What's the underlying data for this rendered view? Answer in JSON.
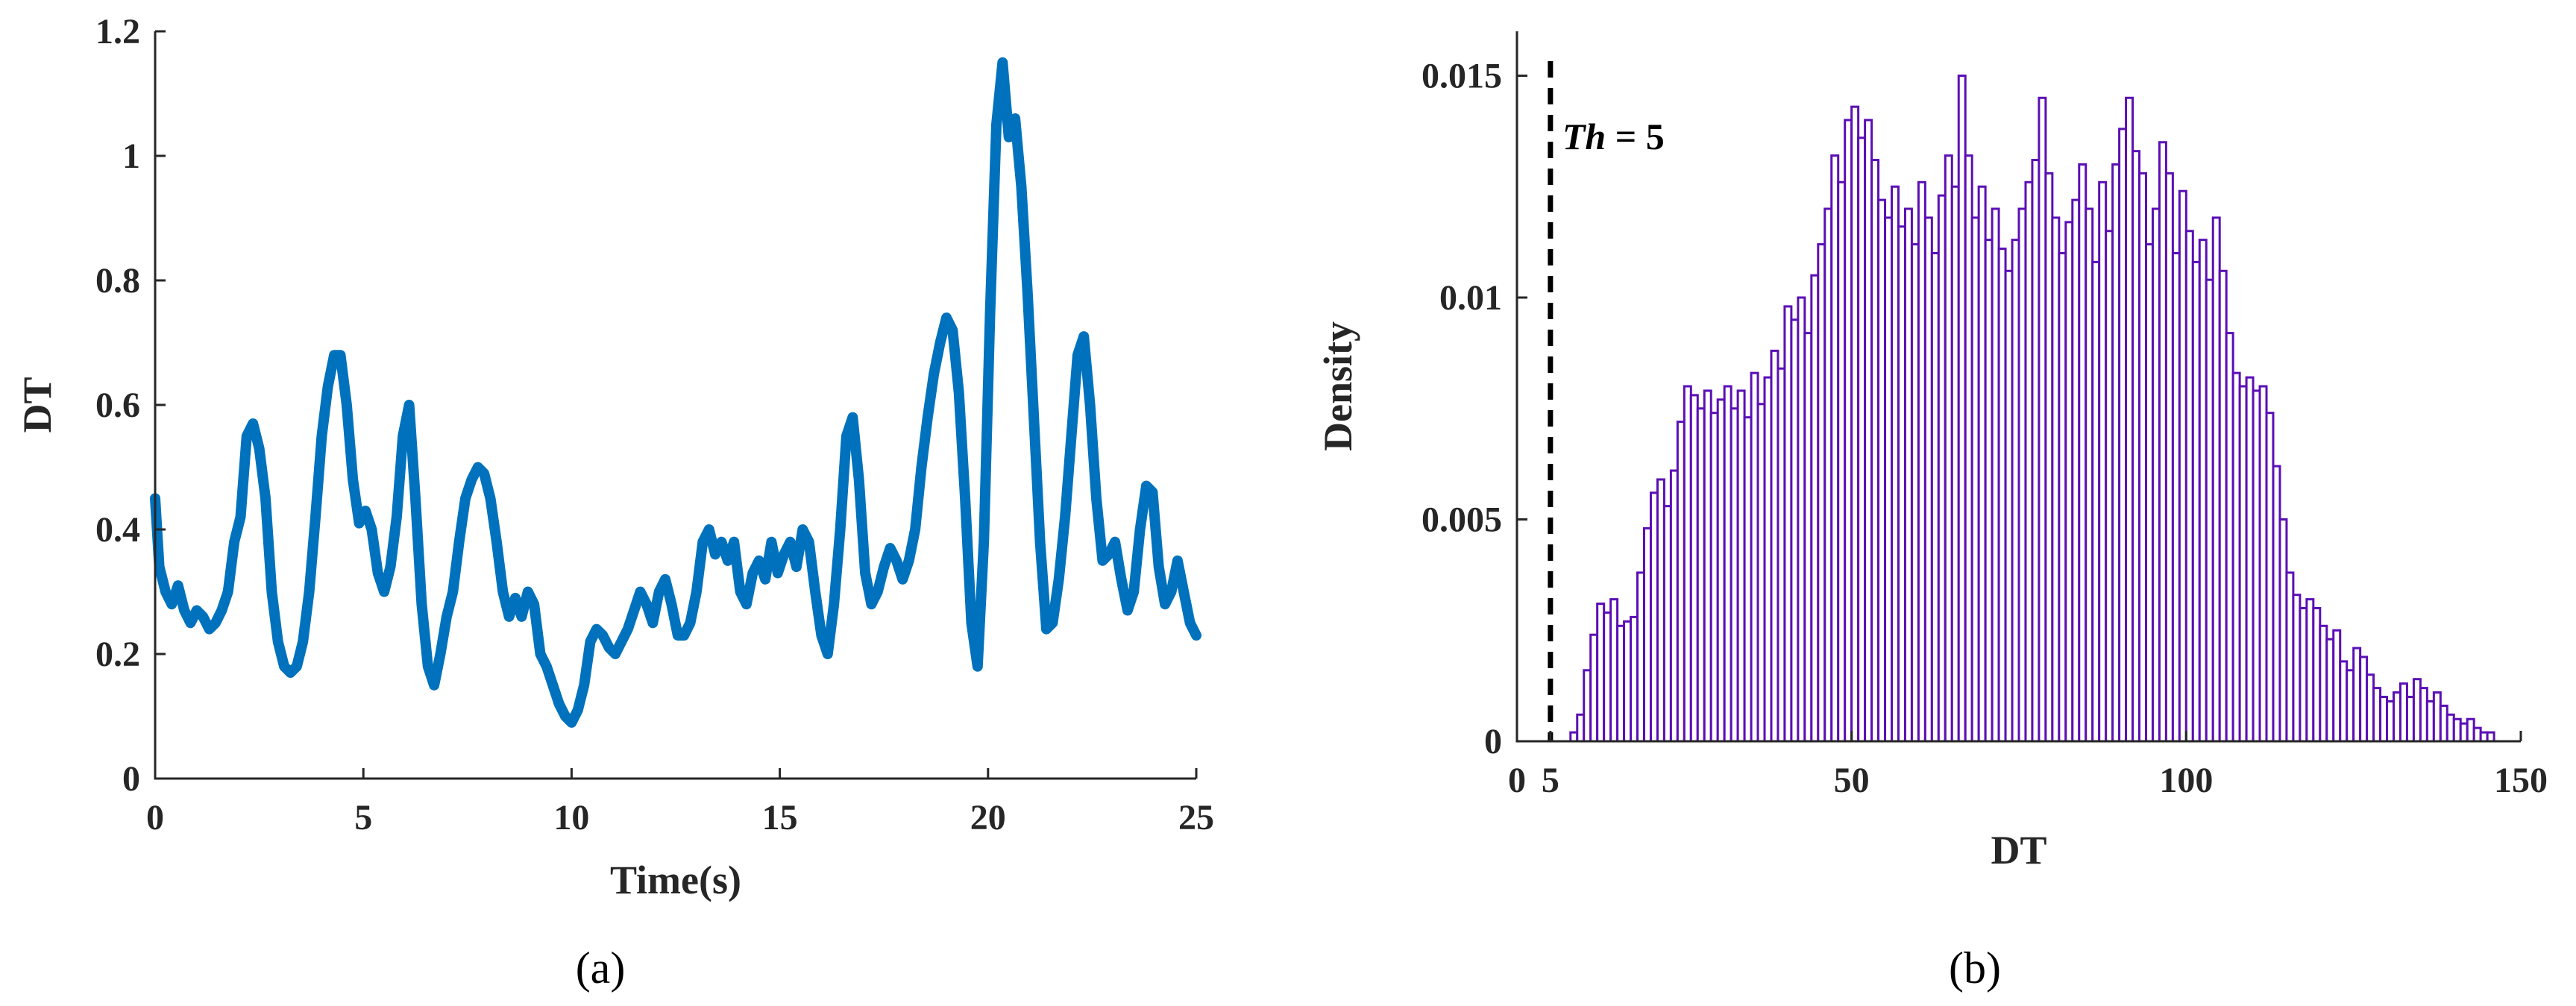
{
  "chart_data": [
    {
      "type": "line",
      "panel_label": "(a)",
      "xlabel": "Time(s)",
      "ylabel": "DT",
      "xlim": [
        0,
        25
      ],
      "ylim": [
        0,
        1.2
      ],
      "xticks": [
        0,
        5,
        10,
        15,
        20,
        25
      ],
      "xtick_labels": [
        "0",
        "5",
        "10",
        "15",
        "20",
        "25"
      ],
      "yticks": [
        0,
        0.2,
        0.4,
        0.6,
        0.8,
        1.0,
        1.2
      ],
      "ytick_labels": [
        "0",
        "0.2",
        "0.4",
        "0.6",
        "0.8",
        "1",
        "1.2"
      ],
      "grid": false,
      "color": "#0072BD",
      "series": [
        {
          "x": [
            0,
            0.1,
            0.25,
            0.4,
            0.55,
            0.7,
            0.85,
            1.0,
            1.15,
            1.3,
            1.45,
            1.6,
            1.75,
            1.9,
            2.05,
            2.2,
            2.35,
            2.5,
            2.65,
            2.8,
            2.95,
            3.1,
            3.25,
            3.4,
            3.55,
            3.7,
            3.85,
            4.0,
            4.15,
            4.3,
            4.45,
            4.6,
            4.75,
            4.9,
            5.05,
            5.2,
            5.35,
            5.5,
            5.65,
            5.8,
            5.95,
            6.1,
            6.25,
            6.4,
            6.55,
            6.7,
            6.85,
            7.0,
            7.15,
            7.3,
            7.45,
            7.6,
            7.75,
            7.9,
            8.05,
            8.2,
            8.35,
            8.5,
            8.65,
            8.8,
            8.95,
            9.1,
            9.25,
            9.4,
            9.55,
            9.7,
            9.85,
            10.0,
            10.15,
            10.3,
            10.45,
            10.6,
            10.75,
            10.9,
            11.05,
            11.2,
            11.35,
            11.5,
            11.65,
            11.8,
            11.95,
            12.1,
            12.25,
            12.4,
            12.55,
            12.7,
            12.85,
            13.0,
            13.15,
            13.3,
            13.45,
            13.6,
            13.75,
            13.9,
            14.05,
            14.2,
            14.35,
            14.5,
            14.65,
            14.8,
            14.95,
            15.1,
            15.25,
            15.4,
            15.55,
            15.7,
            15.85,
            16.0,
            16.15,
            16.3,
            16.45,
            16.6,
            16.75,
            16.9,
            17.05,
            17.2,
            17.35,
            17.5,
            17.65,
            17.8,
            17.95,
            18.1,
            18.25,
            18.4,
            18.55,
            18.7,
            18.85,
            19.0,
            19.15,
            19.3,
            19.45,
            19.6,
            19.75,
            19.9,
            20.05,
            20.2,
            20.35,
            20.5,
            20.65,
            20.8,
            20.95,
            21.1,
            21.25,
            21.4,
            21.55,
            21.7,
            21.85,
            22.0,
            22.15,
            22.3,
            22.45,
            22.6,
            22.75,
            22.9,
            23.05,
            23.2,
            23.35,
            23.5,
            23.65,
            23.8,
            23.95,
            24.1,
            24.25,
            24.4,
            24.55,
            24.7,
            24.85,
            25.0
          ],
          "y": [
            0.45,
            0.34,
            0.3,
            0.28,
            0.31,
            0.27,
            0.25,
            0.27,
            0.26,
            0.24,
            0.25,
            0.27,
            0.3,
            0.38,
            0.42,
            0.55,
            0.57,
            0.53,
            0.45,
            0.3,
            0.22,
            0.18,
            0.17,
            0.18,
            0.22,
            0.3,
            0.42,
            0.55,
            0.63,
            0.68,
            0.68,
            0.6,
            0.48,
            0.41,
            0.43,
            0.4,
            0.33,
            0.3,
            0.34,
            0.42,
            0.55,
            0.6,
            0.45,
            0.28,
            0.18,
            0.15,
            0.2,
            0.26,
            0.3,
            0.38,
            0.45,
            0.48,
            0.5,
            0.49,
            0.45,
            0.38,
            0.3,
            0.26,
            0.29,
            0.26,
            0.3,
            0.28,
            0.2,
            0.18,
            0.15,
            0.12,
            0.1,
            0.09,
            0.11,
            0.15,
            0.22,
            0.24,
            0.23,
            0.21,
            0.2,
            0.22,
            0.24,
            0.27,
            0.3,
            0.28,
            0.25,
            0.3,
            0.32,
            0.28,
            0.23,
            0.23,
            0.25,
            0.3,
            0.38,
            0.4,
            0.36,
            0.38,
            0.35,
            0.38,
            0.3,
            0.28,
            0.33,
            0.35,
            0.32,
            0.38,
            0.33,
            0.36,
            0.38,
            0.34,
            0.4,
            0.38,
            0.3,
            0.23,
            0.2,
            0.28,
            0.4,
            0.55,
            0.58,
            0.48,
            0.33,
            0.28,
            0.3,
            0.34,
            0.37,
            0.35,
            0.32,
            0.35,
            0.4,
            0.5,
            0.58,
            0.65,
            0.7,
            0.74,
            0.72,
            0.62,
            0.45,
            0.25,
            0.18,
            0.38,
            0.75,
            1.05,
            1.15,
            1.03,
            1.06,
            0.95,
            0.78,
            0.58,
            0.38,
            0.24,
            0.25,
            0.32,
            0.42,
            0.55,
            0.68,
            0.71,
            0.6,
            0.45,
            0.35,
            0.36,
            0.38,
            0.32,
            0.27,
            0.3,
            0.4,
            0.47,
            0.46,
            0.34,
            0.28,
            0.3,
            0.35,
            0.3,
            0.25,
            0.23
          ]
        }
      ]
    },
    {
      "type": "bar",
      "panel_label": "(b)",
      "xlabel": "DT",
      "ylabel": "Density",
      "xlim": [
        0,
        150
      ],
      "ylim": [
        0,
        0.016
      ],
      "xticks": [
        0,
        5,
        50,
        100,
        150
      ],
      "xtick_labels": [
        "0",
        "5",
        "50",
        "100",
        "150"
      ],
      "yticks": [
        0,
        0.005,
        0.01,
        0.015
      ],
      "ytick_labels": [
        "0",
        "0.005",
        "0.01",
        "0.015"
      ],
      "grid": false,
      "color": "#5B0FB5",
      "bin_start": 8,
      "bin_width": 1,
      "values": [
        0.0002,
        0.0006,
        0.0016,
        0.0024,
        0.0031,
        0.0029,
        0.0032,
        0.0026,
        0.0027,
        0.0028,
        0.0038,
        0.0048,
        0.0056,
        0.0059,
        0.0053,
        0.0061,
        0.0072,
        0.008,
        0.0078,
        0.0075,
        0.0079,
        0.0074,
        0.0077,
        0.008,
        0.0075,
        0.0079,
        0.0073,
        0.0083,
        0.0076,
        0.0082,
        0.0088,
        0.0084,
        0.0098,
        0.0095,
        0.01,
        0.0092,
        0.0105,
        0.0112,
        0.012,
        0.0132,
        0.0126,
        0.014,
        0.0143,
        0.0136,
        0.014,
        0.0131,
        0.0122,
        0.0118,
        0.0125,
        0.0116,
        0.012,
        0.0112,
        0.0126,
        0.0118,
        0.011,
        0.0123,
        0.0132,
        0.0125,
        0.015,
        0.0132,
        0.0118,
        0.0125,
        0.0113,
        0.012,
        0.0111,
        0.0106,
        0.0113,
        0.012,
        0.0126,
        0.0131,
        0.0145,
        0.0128,
        0.0118,
        0.011,
        0.0117,
        0.0122,
        0.013,
        0.012,
        0.0108,
        0.0126,
        0.0115,
        0.013,
        0.0138,
        0.0145,
        0.0133,
        0.0128,
        0.0112,
        0.012,
        0.0135,
        0.0128,
        0.011,
        0.0124,
        0.0115,
        0.0108,
        0.0113,
        0.0104,
        0.0118,
        0.0106,
        0.0092,
        0.0083,
        0.008,
        0.0082,
        0.0079,
        0.008,
        0.0074,
        0.0062,
        0.005,
        0.0038,
        0.0033,
        0.003,
        0.0032,
        0.003,
        0.0026,
        0.0023,
        0.0025,
        0.0018,
        0.0016,
        0.0021,
        0.0019,
        0.0015,
        0.0012,
        0.001,
        0.0009,
        0.0011,
        0.0013,
        0.001,
        0.0014,
        0.0012,
        0.0009,
        0.0011,
        0.0008,
        0.0006,
        0.0005,
        0.0004,
        0.0005,
        0.0003,
        0.0002,
        0.0002
      ],
      "threshold": {
        "x": 5,
        "label_prefix": "Th",
        "label_suffix": " = 5"
      }
    }
  ]
}
